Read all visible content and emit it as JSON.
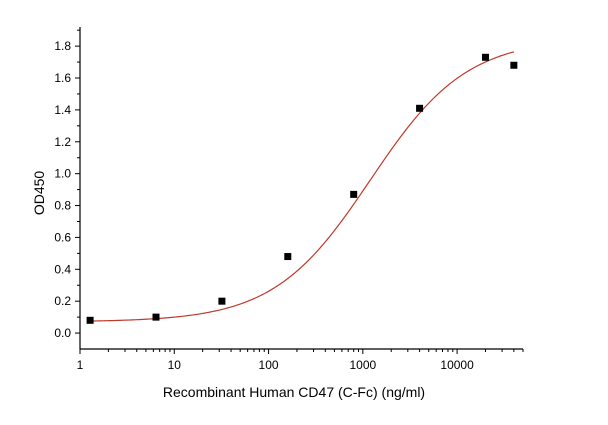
{
  "chart_data": {
    "type": "scatter",
    "xlabel": "Recombinant Human CD47 (C-Fc) (ng/ml)",
    "ylabel": "OD450",
    "xscale": "log",
    "xlim": [
      1,
      50000
    ],
    "ylim": [
      -0.1,
      1.92
    ],
    "grid": false,
    "x_ticks": [
      1,
      10,
      100,
      1000,
      10000
    ],
    "x_tick_labels": [
      "1",
      "10",
      "100",
      "1000",
      "10000"
    ],
    "y_ticks": [
      0.0,
      0.2,
      0.4,
      0.6,
      0.8,
      1.0,
      1.2,
      1.4,
      1.6,
      1.8
    ],
    "y_tick_labels": [
      "0.0",
      "0.2",
      "0.4",
      "0.6",
      "0.8",
      "1.0",
      "1.2",
      "1.4",
      "1.6",
      "1.8"
    ],
    "series": [
      {
        "marker": "square",
        "color": "#000000",
        "x": [
          1.28,
          6.4,
          32,
          160,
          800,
          4000,
          20000,
          40000
        ],
        "y": [
          0.08,
          0.1,
          0.2,
          0.48,
          0.87,
          1.41,
          1.73,
          1.68
        ]
      }
    ],
    "fit_curve": {
      "type": "4PL",
      "color": "#c0392b",
      "bottom": 0.07,
      "top": 1.85,
      "ec50": 1200,
      "hill": 0.85
    }
  }
}
